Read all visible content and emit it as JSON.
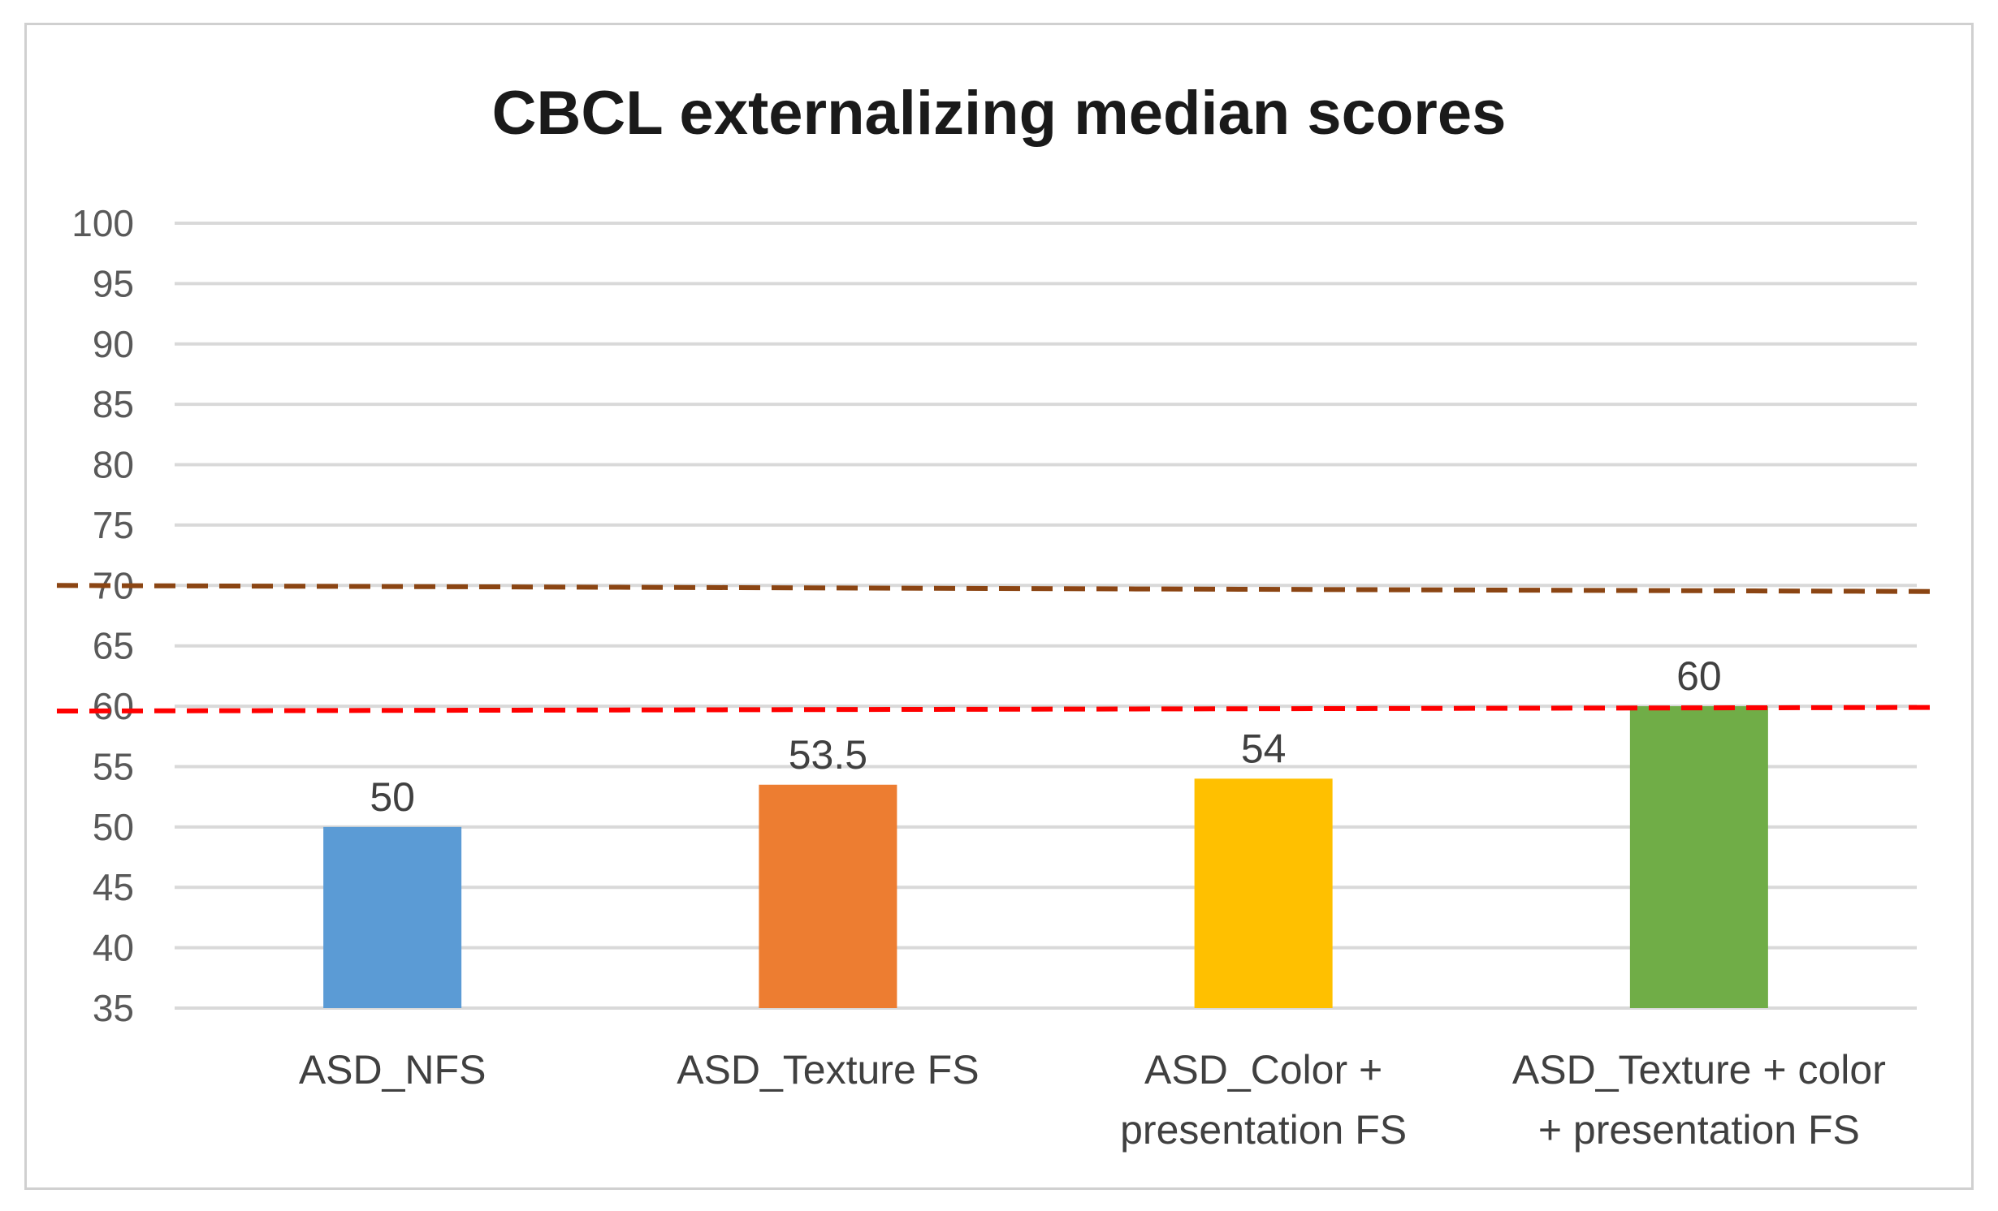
{
  "chart_data": {
    "type": "bar",
    "title": "CBCL externalizing median scores",
    "xlabel": "",
    "ylabel": "",
    "ylim": [
      35,
      100
    ],
    "ytick_step": 5,
    "grid": true,
    "categories": [
      [
        "ASD_NFS"
      ],
      [
        "ASD_Texture FS"
      ],
      [
        "ASD_Color +",
        "presentation FS"
      ],
      [
        "ASD_Texture + color",
        "+ presentation FS"
      ]
    ],
    "values": [
      50,
      53.5,
      54,
      60
    ],
    "data_labels": [
      "50",
      "53.5",
      "54",
      "60"
    ],
    "bar_colors": [
      "#5B9BD5",
      "#ED7D31",
      "#FFC000",
      "#70AD47"
    ],
    "reference_lines": [
      {
        "y_start": 70,
        "y_end": 69.5,
        "color": "#8B4513",
        "style": "dashed"
      },
      {
        "y_start": 59.6,
        "y_end": 59.9,
        "color": "#FF0000",
        "style": "dashed"
      }
    ]
  }
}
